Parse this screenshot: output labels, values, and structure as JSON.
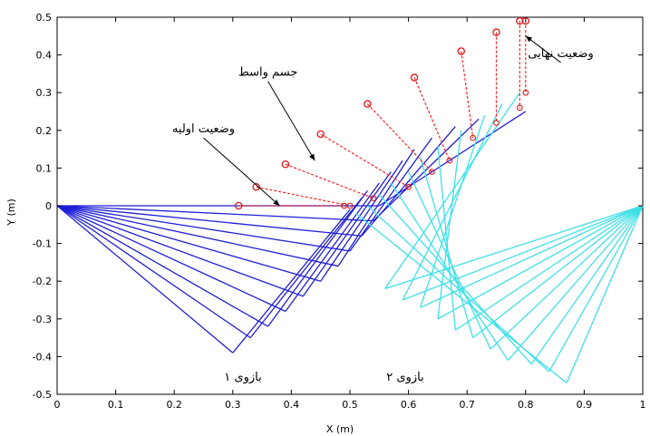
{
  "chart_data": {
    "type": "line",
    "title": "",
    "xlabel": "X (m)",
    "ylabel": "Y (m)",
    "xlim": [
      0,
      1
    ],
    "ylim": [
      -0.5,
      0.5
    ],
    "xticks": [
      "0",
      "0.1",
      "0.2",
      "0.3",
      "0.4",
      "0.5",
      "0.6",
      "0.7",
      "0.8",
      "0.9",
      "1"
    ],
    "yticks": [
      "0.5",
      "0.4",
      "0.3",
      "0.2",
      "0.1",
      "0",
      "-0.1",
      "-0.2",
      "-0.3",
      "-0.4",
      "-0.5"
    ],
    "grid": false,
    "colors": {
      "arm1": "#1f1fd6",
      "arm2": "#3fe0e8",
      "object": "#ff2020",
      "marker": "#e01818"
    },
    "arm1": {
      "label": "بازوی ۱",
      "base": [
        0.0,
        0.0
      ],
      "elbow": [
        [
          0.3,
          -0.39
        ],
        [
          0.33,
          -0.35
        ],
        [
          0.36,
          -0.32
        ],
        [
          0.39,
          -0.28
        ],
        [
          0.42,
          -0.24
        ],
        [
          0.45,
          -0.2
        ],
        [
          0.48,
          -0.16
        ],
        [
          0.5,
          -0.12
        ],
        [
          0.52,
          -0.08
        ],
        [
          0.54,
          -0.04
        ],
        [
          0.55,
          0.0
        ]
      ],
      "tip": [
        [
          0.5,
          -0.01
        ],
        [
          0.52,
          0.02
        ],
        [
          0.53,
          0.04
        ],
        [
          0.55,
          0.06
        ],
        [
          0.57,
          0.09
        ],
        [
          0.59,
          0.12
        ],
        [
          0.61,
          0.15
        ],
        [
          0.64,
          0.18
        ],
        [
          0.68,
          0.21
        ],
        [
          0.72,
          0.23
        ],
        [
          0.8,
          0.25
        ]
      ]
    },
    "arm2": {
      "label": "بازوی ۲",
      "base": [
        1.0,
        0.0
      ],
      "elbow": [
        [
          0.87,
          -0.47
        ],
        [
          0.84,
          -0.44
        ],
        [
          0.81,
          -0.42
        ],
        [
          0.77,
          -0.41
        ],
        [
          0.74,
          -0.38
        ],
        [
          0.71,
          -0.35
        ],
        [
          0.68,
          -0.33
        ],
        [
          0.65,
          -0.3
        ],
        [
          0.62,
          -0.27
        ],
        [
          0.59,
          -0.25
        ],
        [
          0.56,
          -0.22
        ]
      ],
      "tip": [
        [
          0.51,
          -0.02
        ],
        [
          0.53,
          0.0
        ],
        [
          0.55,
          0.03
        ],
        [
          0.57,
          0.06
        ],
        [
          0.6,
          0.09
        ],
        [
          0.62,
          0.13
        ],
        [
          0.65,
          0.16
        ],
        [
          0.69,
          0.2
        ],
        [
          0.73,
          0.24
        ],
        [
          0.76,
          0.27
        ],
        [
          0.79,
          0.3
        ]
      ]
    },
    "object": {
      "label": "جسم واسط",
      "end1": [
        [
          0.31,
          0.0
        ],
        [
          0.34,
          0.05
        ],
        [
          0.39,
          0.11
        ],
        [
          0.45,
          0.19
        ],
        [
          0.53,
          0.27
        ],
        [
          0.61,
          0.34
        ],
        [
          0.69,
          0.41
        ],
        [
          0.75,
          0.46
        ],
        [
          0.79,
          0.49
        ],
        [
          0.8,
          0.49
        ]
      ],
      "end2": [
        [
          0.49,
          0.0
        ],
        [
          0.5,
          0.0
        ],
        [
          0.54,
          0.02
        ],
        [
          0.6,
          0.05
        ],
        [
          0.64,
          0.09
        ],
        [
          0.67,
          0.12
        ],
        [
          0.71,
          0.18
        ],
        [
          0.75,
          0.22
        ],
        [
          0.79,
          0.26
        ],
        [
          0.8,
          0.3
        ]
      ]
    },
    "annotations": [
      {
        "text": "وضعیت اولیه",
        "from": [
          0.25,
          0.18
        ],
        "to": [
          0.38,
          0.0
        ]
      },
      {
        "text": "جسم واسط",
        "from": [
          0.36,
          0.33
        ],
        "to": [
          0.44,
          0.12
        ]
      },
      {
        "text": "وضعیت نهایی",
        "from": [
          0.86,
          0.38
        ],
        "to": [
          0.8,
          0.45
        ]
      }
    ]
  }
}
